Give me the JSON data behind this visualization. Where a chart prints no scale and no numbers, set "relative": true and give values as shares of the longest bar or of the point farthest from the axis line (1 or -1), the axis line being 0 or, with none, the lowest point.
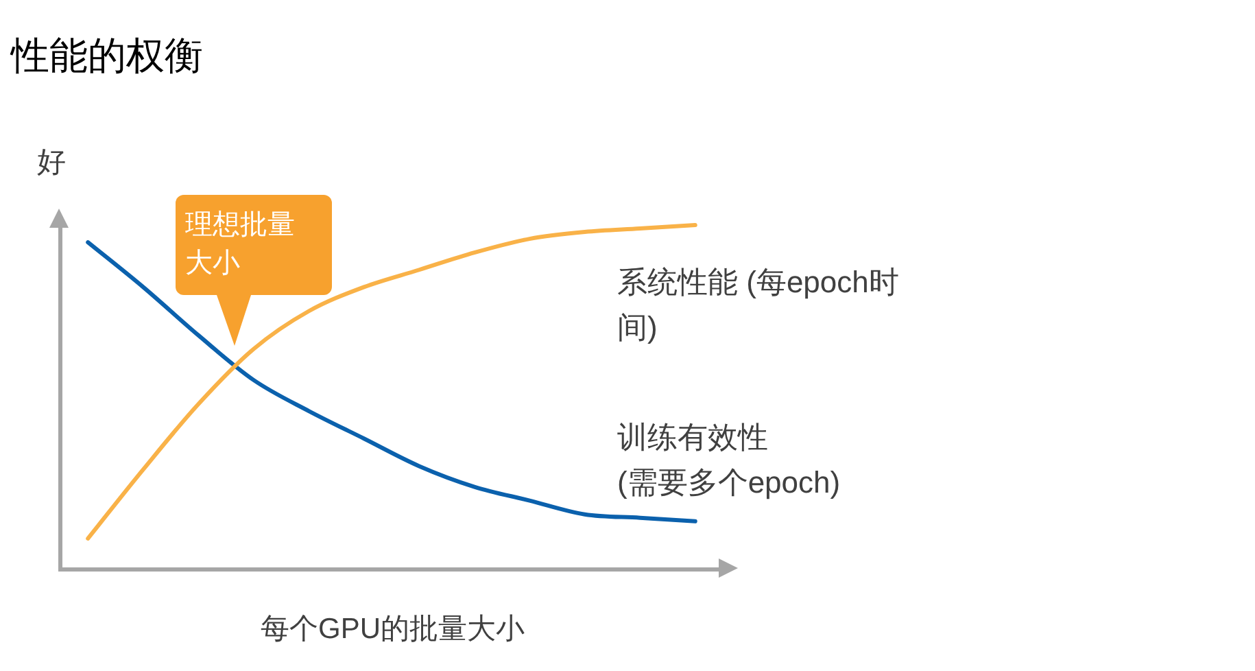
{
  "chart_data": {
    "type": "line",
    "title": "性能的权衡",
    "xlabel": "每个GPU的批量大小",
    "ylabel": "好",
    "relative": true,
    "categories": [
      null,
      null,
      null,
      null,
      null,
      null,
      null,
      null,
      null,
      null,
      null,
      null
    ],
    "series": [
      {
        "name": "系统性能 (每epoch时间)",
        "color": "#f9b248",
        "values": [
          0.09,
          0.29,
          0.48,
          0.64,
          0.75,
          0.82,
          0.87,
          0.92,
          0.96,
          0.98,
          0.99,
          1
        ]
      },
      {
        "name": "训练有效性\n(需要多个epoch)",
        "color": "#0b61ad",
        "values": [
          0.95,
          0.82,
          0.68,
          0.55,
          0.46,
          0.38,
          0.3,
          0.24,
          0.2,
          0.16,
          0.15,
          0.14
        ]
      }
    ],
    "annotations": [
      "理想批量大小"
    ]
  }
}
